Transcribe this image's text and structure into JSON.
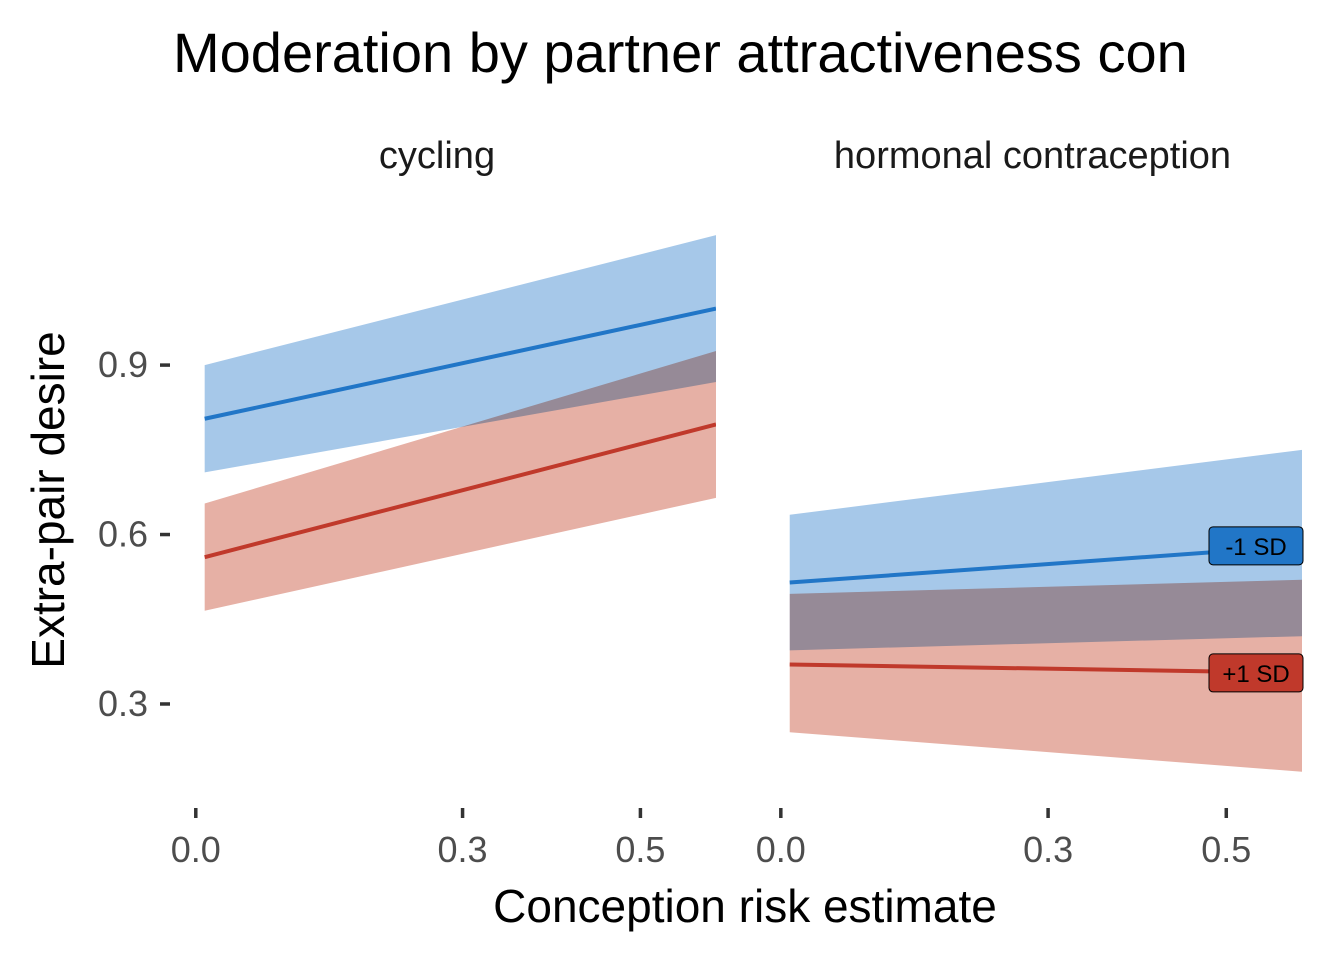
{
  "chart_data": {
    "type": "line",
    "title": "Moderation by partner attractiveness con",
    "xlabel": "Conception risk estimate",
    "ylabel": "Extra-pair desire",
    "xlim": [
      -0.02,
      0.585
    ],
    "ylim": [
      0.13,
      1.21
    ],
    "x_ticks": [
      0.0,
      0.3,
      0.5
    ],
    "x_tick_labels": [
      "0.0",
      "0.3",
      "0.5"
    ],
    "y_ticks": [
      0.3,
      0.6,
      0.9
    ],
    "y_tick_labels": [
      "0.3",
      "0.6",
      "0.9"
    ],
    "grid": false,
    "legend": "end-of-line labels",
    "colors": {
      "minus_sd": "#2176c7",
      "plus_sd": "#c0392b",
      "minus_sd_band": "#a6c8e9",
      "plus_sd_band": "#e6b0a5",
      "overlap_band": "#ad8b8f"
    },
    "panels": [
      {
        "name": "cycling",
        "series": [
          {
            "name": "-1 SD",
            "x": [
              0.01,
              0.585
            ],
            "y": [
              0.805,
              1.0
            ],
            "lower": [
              0.71,
              0.87
            ],
            "upper": [
              0.9,
              1.13
            ]
          },
          {
            "name": "+1 SD",
            "x": [
              0.01,
              0.585
            ],
            "y": [
              0.56,
              0.795
            ],
            "lower": [
              0.465,
              0.665
            ],
            "upper": [
              0.655,
              0.925
            ]
          }
        ]
      },
      {
        "name": "hormonal contraception",
        "series": [
          {
            "name": "-1 SD",
            "x": [
              0.01,
              0.585
            ],
            "y": [
              0.515,
              0.58
            ],
            "lower": [
              0.395,
              0.42
            ],
            "upper": [
              0.635,
              0.75
            ]
          },
          {
            "name": "+1 SD",
            "x": [
              0.01,
              0.585
            ],
            "y": [
              0.37,
              0.355
            ],
            "lower": [
              0.25,
              0.18
            ],
            "upper": [
              0.495,
              0.52
            ]
          }
        ]
      }
    ]
  }
}
